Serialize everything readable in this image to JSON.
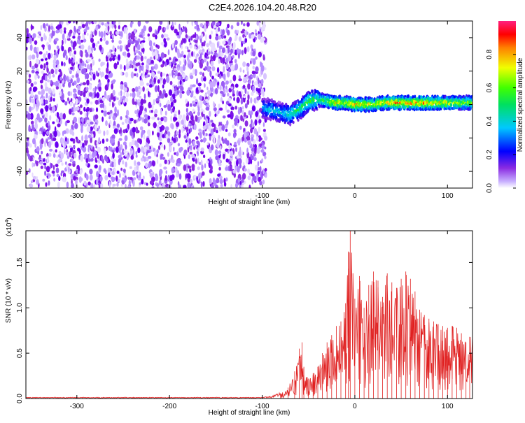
{
  "title": "C2E4.2026.104.20.48.R20",
  "chart_data": [
    {
      "type": "heatmap",
      "xlabel": "Height of straight line (km)",
      "ylabel": "Frequency (Hz)",
      "xlim": [
        -355,
        127
      ],
      "ylim": [
        -50,
        50
      ],
      "xticks": [
        -300,
        -200,
        -100,
        0,
        100
      ],
      "yticks": [
        -40,
        -20,
        0,
        20,
        40
      ],
      "noise_region_x": [
        -355,
        -96
      ],
      "signal_band": [
        {
          "x": -100,
          "y": -2,
          "v": 0.35
        },
        {
          "x": -90,
          "y": -3,
          "v": 0.45
        },
        {
          "x": -80,
          "y": -5,
          "v": 0.4
        },
        {
          "x": -70,
          "y": -6,
          "v": 0.5
        },
        {
          "x": -60,
          "y": -3,
          "v": 0.55
        },
        {
          "x": -50,
          "y": 2,
          "v": 0.6
        },
        {
          "x": -40,
          "y": 3,
          "v": 0.55
        },
        {
          "x": -30,
          "y": 2,
          "v": 0.7
        },
        {
          "x": -20,
          "y": 1,
          "v": 0.8
        },
        {
          "x": -10,
          "y": 1,
          "v": 0.75
        },
        {
          "x": 0,
          "y": 0,
          "v": 0.85
        },
        {
          "x": 10,
          "y": 0,
          "v": 0.8
        },
        {
          "x": 20,
          "y": 0,
          "v": 0.75
        },
        {
          "x": 30,
          "y": 1,
          "v": 0.8
        },
        {
          "x": 40,
          "y": 1,
          "v": 0.85
        },
        {
          "x": 50,
          "y": 1,
          "v": 0.9
        },
        {
          "x": 60,
          "y": 1,
          "v": 0.85
        },
        {
          "x": 70,
          "y": 1,
          "v": 0.9
        },
        {
          "x": 80,
          "y": 1,
          "v": 0.85
        },
        {
          "x": 90,
          "y": 1,
          "v": 0.8
        },
        {
          "x": 100,
          "y": 1,
          "v": 0.75
        },
        {
          "x": 110,
          "y": 1,
          "v": 0.7
        },
        {
          "x": 120,
          "y": 1,
          "v": 0.7
        }
      ],
      "colorbar": {
        "label": "Normalized spectral amplitude",
        "range": [
          0,
          1
        ],
        "ticks": [
          0.0,
          0.2,
          0.4,
          0.6,
          0.8
        ],
        "colormap": "rainbow (white-magenta-blue-cyan-green-yellow-red-pink)"
      }
    },
    {
      "type": "line",
      "xlabel": "Height of straight line (km)",
      "ylabel": "SNR (10 * v/v)",
      "y_multiplier": "(x10",
      "y_multiplier_exponent": "4",
      "y_multiplier_close": ")",
      "xlim": [
        -355,
        127
      ],
      "ylim": [
        0,
        1.85
      ],
      "xticks": [
        -300,
        -200,
        -100,
        0,
        100
      ],
      "yticks": [
        0.0,
        0.5,
        1.0,
        1.5
      ],
      "yticklabels": [
        "0.0",
        "0.5",
        "1.0",
        "1.5"
      ],
      "color": "#e02020",
      "series": [
        {
          "x": [
            -355,
            -300,
            -250,
            -200,
            -150,
            -110,
            -100,
            -90,
            -80,
            -72,
            -65,
            -60,
            -57,
            -55,
            -50,
            -45,
            -40,
            -35,
            -30,
            -25,
            -20,
            -15,
            -10,
            -7,
            -5,
            0,
            5,
            10,
            15,
            20,
            25,
            30,
            35,
            40,
            45,
            50,
            55,
            60,
            65,
            70,
            75,
            80,
            85,
            90,
            95,
            100,
            105,
            110,
            115,
            120,
            124,
            127
          ],
          "y": [
            0.01,
            0.01,
            0.01,
            0.01,
            0.01,
            0.01,
            0.01,
            0.02,
            0.05,
            0.12,
            0.3,
            0.55,
            0.62,
            0.35,
            0.22,
            0.28,
            0.35,
            0.5,
            0.62,
            0.7,
            0.8,
            0.85,
            1.05,
            1.62,
            1.85,
            1.1,
            1.35,
            1.0,
            1.25,
            1.4,
            1.3,
            1.12,
            1.38,
            1.28,
            1.22,
            1.32,
            1.4,
            1.32,
            1.18,
            0.98,
            0.92,
            0.88,
            0.85,
            0.82,
            0.8,
            0.78,
            0.8,
            0.78,
            0.72,
            0.62,
            0.68,
            0.7
          ]
        }
      ]
    }
  ]
}
